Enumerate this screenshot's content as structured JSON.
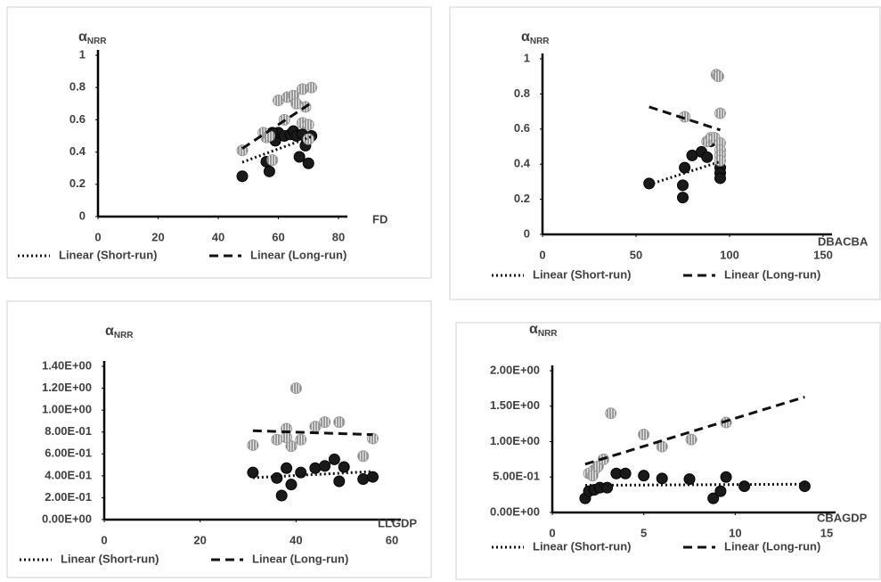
{
  "chart_data": [
    {
      "type": "scatter",
      "y_label": {
        "symbol": "α",
        "subscript": "NRR"
      },
      "x_label": "FD",
      "xlim": [
        0,
        80
      ],
      "xticks": [
        0,
        20,
        40,
        60,
        80
      ],
      "ylim": [
        0,
        1
      ],
      "yticks": [
        0,
        0.2,
        0.4,
        0.6,
        0.8,
        1
      ],
      "series": [
        {
          "name": "Linear (Short-run)",
          "color": "#1a1a1a",
          "marker": "solid",
          "line_style": "dotted",
          "x": [
            48,
            56,
            57,
            59,
            60,
            62,
            64,
            65,
            66,
            67,
            68,
            69,
            70,
            71,
            58
          ],
          "values": [
            0.25,
            0.34,
            0.28,
            0.47,
            0.52,
            0.5,
            0.51,
            0.53,
            0.5,
            0.37,
            0.51,
            0.44,
            0.33,
            0.5,
            0.52
          ]
        },
        {
          "name": "Linear (Long-run)",
          "color": "#9a9a9a",
          "marker": "hatched",
          "line_style": "dashed",
          "x": [
            48,
            55,
            56,
            58,
            60,
            62,
            63,
            65,
            66,
            68,
            68,
            69,
            70,
            71,
            70,
            57
          ],
          "values": [
            0.41,
            0.52,
            0.49,
            0.35,
            0.72,
            0.6,
            0.74,
            0.75,
            0.7,
            0.79,
            0.58,
            0.68,
            0.57,
            0.8,
            0.48,
            0.5
          ]
        }
      ]
    },
    {
      "type": "scatter",
      "y_label": {
        "symbol": "α",
        "subscript": "NRR"
      },
      "x_label": "DBACBA",
      "xlim": [
        0,
        150
      ],
      "xticks": [
        0,
        50,
        100,
        150
      ],
      "ylim": [
        0,
        1
      ],
      "yticks": [
        0,
        0.2,
        0.4,
        0.6,
        0.8,
        1
      ],
      "series": [
        {
          "name": "Linear (Short-run)",
          "color": "#1a1a1a",
          "marker": "solid",
          "line_style": "dotted",
          "x": [
            57,
            75,
            75,
            76,
            80,
            85,
            88,
            90,
            95,
            95,
            95
          ],
          "values": [
            0.29,
            0.28,
            0.21,
            0.38,
            0.45,
            0.47,
            0.44,
            0.53,
            0.38,
            0.35,
            0.32
          ]
        },
        {
          "name": "Linear (Long-run)",
          "color": "#9a9a9a",
          "marker": "hatched",
          "line_style": "dashed",
          "x": [
            76,
            88,
            90,
            92,
            93,
            94,
            95,
            95,
            95,
            95,
            95
          ],
          "values": [
            0.67,
            0.53,
            0.55,
            0.55,
            0.91,
            0.9,
            0.69,
            0.52,
            0.48,
            0.45,
            0.42
          ]
        }
      ]
    },
    {
      "type": "scatter",
      "y_label": {
        "symbol": "α",
        "subscript": "NRR"
      },
      "x_label": "LLGDP",
      "xlim": [
        0,
        60
      ],
      "xticks": [
        0,
        20,
        40,
        60
      ],
      "ylim": [
        0,
        1.4
      ],
      "yticks": [
        {
          "value": 0,
          "label": "0.00E+00"
        },
        {
          "value": 0.2,
          "label": "2.00E-01"
        },
        {
          "value": 0.4,
          "label": "4.00E-01"
        },
        {
          "value": 0.6,
          "label": "6.00E-01"
        },
        {
          "value": 0.8,
          "label": "8.00E-01"
        },
        {
          "value": 1,
          "label": "1.00E+00"
        },
        {
          "value": 1.2,
          "label": "1.20E+00"
        },
        {
          "value": 1.4,
          "label": "1.40E+00"
        }
      ],
      "series": [
        {
          "name": "Linear (Short-run)",
          "color": "#1a1a1a",
          "marker": "solid",
          "line_style": "dotted",
          "x": [
            31,
            36,
            37,
            38,
            39,
            41,
            44,
            46,
            48,
            49,
            54,
            56,
            50
          ],
          "values": [
            0.43,
            0.38,
            0.22,
            0.47,
            0.32,
            0.43,
            0.47,
            0.49,
            0.55,
            0.35,
            0.37,
            0.39,
            0.48
          ]
        },
        {
          "name": "Linear (Long-run)",
          "color": "#9a9a9a",
          "marker": "hatched",
          "line_style": "dashed",
          "x": [
            31,
            36,
            38,
            39,
            40,
            41,
            44,
            46,
            49,
            54,
            56,
            38
          ],
          "values": [
            0.68,
            0.73,
            0.83,
            0.67,
            1.2,
            0.73,
            0.85,
            0.89,
            0.89,
            0.58,
            0.74,
            0.75
          ]
        }
      ]
    },
    {
      "type": "scatter",
      "y_label": {
        "symbol": "α",
        "subscript": "NRR"
      },
      "x_label": "CBAGDP",
      "xlim": [
        0,
        15
      ],
      "xticks": [
        0,
        5,
        10,
        15
      ],
      "ylim": [
        0,
        2
      ],
      "yticks": [
        {
          "value": 0,
          "label": "0.00E+00"
        },
        {
          "value": 0.5,
          "label": "5.00E-01"
        },
        {
          "value": 1,
          "label": "1.00E+00"
        },
        {
          "value": 1.5,
          "label": "1.50E+00"
        },
        {
          "value": 2,
          "label": "2.00E+00"
        }
      ],
      "series": [
        {
          "name": "Linear (Short-run)",
          "color": "#1a1a1a",
          "marker": "solid",
          "line_style": "dotted",
          "x": [
            1.8,
            2,
            2.3,
            2.6,
            3,
            3.5,
            4,
            5,
            6,
            7.5,
            8.8,
            9.2,
            9.5,
            10.5,
            13.8
          ],
          "values": [
            0.2,
            0.3,
            0.32,
            0.35,
            0.35,
            0.55,
            0.55,
            0.52,
            0.48,
            0.47,
            0.2,
            0.3,
            0.5,
            0.37,
            0.37
          ]
        },
        {
          "name": "Linear (Long-run)",
          "color": "#9a9a9a",
          "marker": "hatched",
          "line_style": "dashed",
          "x": [
            2,
            2.3,
            2.5,
            2.8,
            3.2,
            5,
            6,
            7.6,
            9.5,
            2.2
          ],
          "values": [
            0.55,
            0.6,
            0.65,
            0.75,
            1.4,
            1.1,
            0.93,
            1.03,
            1.27,
            0.52
          ]
        }
      ]
    }
  ]
}
